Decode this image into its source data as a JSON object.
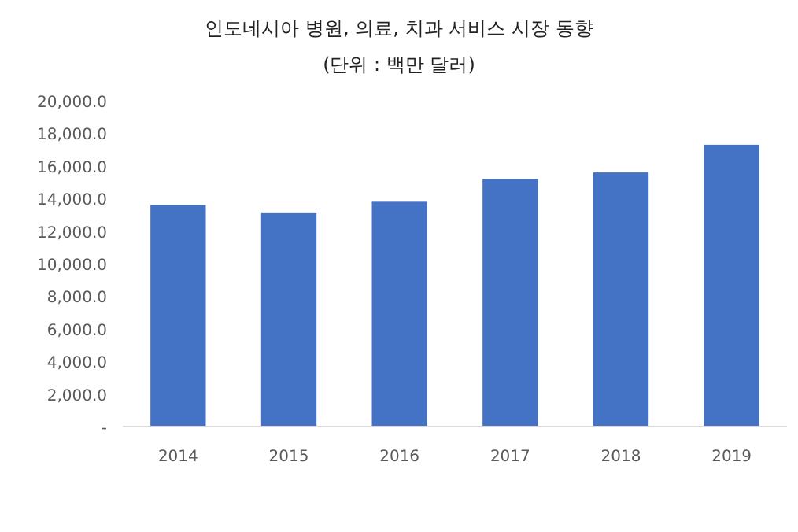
{
  "chart_data": {
    "type": "bar",
    "title": "인도네시아 병원, 의료, 치과 서비스 시장 동향",
    "subtitle": "(단위 : 백만 달러)",
    "categories": [
      "2014",
      "2015",
      "2016",
      "2017",
      "2018",
      "2019"
    ],
    "values": [
      13600,
      13100,
      13800,
      15200,
      15600,
      17300
    ],
    "color": "#4472c4",
    "ylim": [
      0,
      20000
    ],
    "yticks": [
      {
        "value": 0,
        "label": "-"
      },
      {
        "value": 2000,
        "label": "2,000.0"
      },
      {
        "value": 4000,
        "label": "4,000.0"
      },
      {
        "value": 6000,
        "label": "6,000.0"
      },
      {
        "value": 8000,
        "label": "8,000.0"
      },
      {
        "value": 10000,
        "label": "10,000.0"
      },
      {
        "value": 12000,
        "label": "12,000.0"
      },
      {
        "value": 14000,
        "label": "14,000.0"
      },
      {
        "value": 16000,
        "label": "16,000.0"
      },
      {
        "value": 18000,
        "label": "18,000.0"
      },
      {
        "value": 20000,
        "label": "20,000.0"
      }
    ]
  }
}
